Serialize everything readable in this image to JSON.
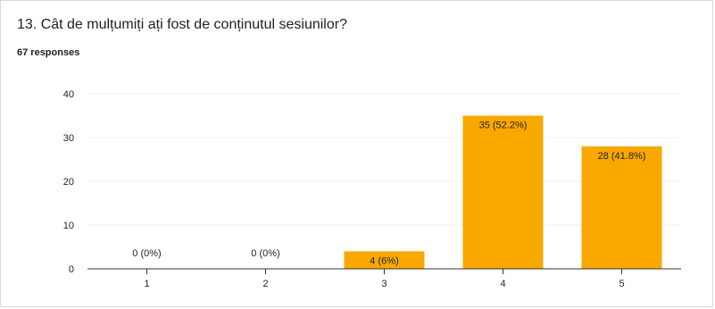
{
  "question": {
    "title": "13. Cât de mulțumiți ați fost de conținutul sesiunilor?",
    "responses_label": "67 responses"
  },
  "colors": {
    "bar": "#f9a800",
    "grid": "#efefef",
    "axis": "#333333",
    "text": "#222222"
  },
  "chart_data": {
    "type": "bar",
    "title": "13. Cât de mulțumiți ați fost de conținutul sesiunilor?",
    "subtitle": "67 responses",
    "categories": [
      "1",
      "2",
      "3",
      "4",
      "5"
    ],
    "values": [
      0,
      0,
      4,
      35,
      28
    ],
    "labels": [
      "0 (0%)",
      "0 (0%)",
      "4 (6%)",
      "35 (52.2%)",
      "28 (41.8%)"
    ],
    "y_ticks": [
      0,
      10,
      20,
      30,
      40
    ],
    "ylim": [
      0,
      40
    ],
    "xlabel": "",
    "ylabel": "",
    "grid": true,
    "legend": "none"
  }
}
